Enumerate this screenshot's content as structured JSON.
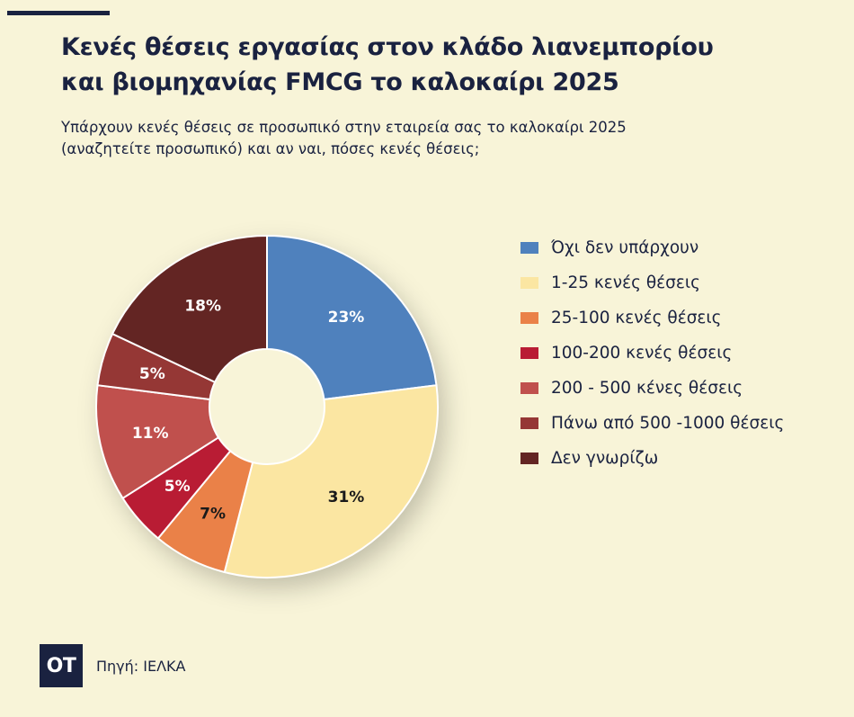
{
  "header": {
    "title_lines": [
      "Κενές θέσεις εργασίας στον κλάδο λιανεμπορίου",
      "και βιομηχανίας FMCG το καλοκαίρι 2025"
    ],
    "subtitle_lines": [
      "Υπάρχουν κενές θέσεις σε προσωπικό στην εταιρεία σας το καλοκαίρι 2025",
      "(αναζητείτε προσωπικό) και αν ναι, πόσες κενές θέσεις;"
    ]
  },
  "chart_data": {
    "type": "pie",
    "donut": true,
    "legend_position": "right",
    "slices": [
      {
        "label": "Όχι δεν υπάρχουν",
        "value": 23,
        "value_label": "23%",
        "color": "#4f81bd",
        "label_color": "#ffffff"
      },
      {
        "label": "1-25 κενές θέσεις",
        "value": 31,
        "value_label": "31%",
        "color": "#fbe6a2",
        "label_color": "#1a1a1a"
      },
      {
        "label": "25-100 κενές θέσεις",
        "value": 7,
        "value_label": "7%",
        "color": "#ea8148",
        "label_color": "#1a1a1a"
      },
      {
        "label": "100-200 κενές θέσεις",
        "value": 5,
        "value_label": "5%",
        "color": "#b91c34",
        "label_color": "#ffffff"
      },
      {
        "label": "200 - 500 κένες θέσεις",
        "value": 11,
        "value_label": "11%",
        "color": "#c0504d",
        "label_color": "#ffffff"
      },
      {
        "label": "Πάνω από 500 -1000 θέσεις",
        "value": 5,
        "value_label": "5%",
        "color": "#953735",
        "label_color": "#ffffff"
      },
      {
        "label": "Δεν γνωρίζω",
        "value": 18,
        "value_label": "18%",
        "color": "#632523",
        "label_color": "#ffffff"
      }
    ]
  },
  "footer": {
    "logo_text": "OT",
    "source": "Πηγή: ΙΕΛΚΑ"
  }
}
